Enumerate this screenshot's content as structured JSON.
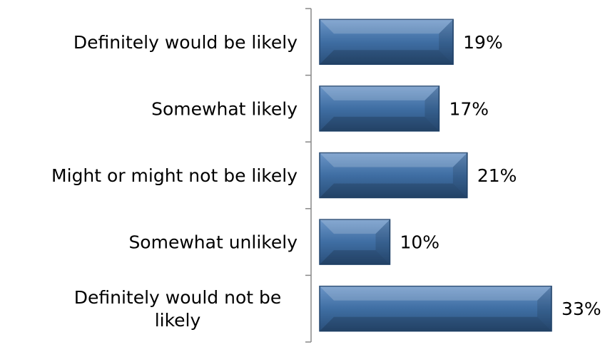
{
  "chart_data": {
    "type": "bar",
    "orientation": "horizontal",
    "categories": [
      "Definitely would be likely",
      "Somewhat likely",
      "Might or might not be likely",
      "Somewhat unlikely",
      "Definitely would not be likely"
    ],
    "category_lines": [
      [
        "Definitely would be likely"
      ],
      [
        "Somewhat likely"
      ],
      [
        "Might or might not be likely"
      ],
      [
        "Somewhat unlikely"
      ],
      [
        "Definitely would not be",
        "likely"
      ]
    ],
    "values": [
      19,
      17,
      21,
      10,
      33
    ],
    "data_labels": [
      "19%",
      "17%",
      "21%",
      "10%",
      "33%"
    ],
    "unit": "%",
    "title": "",
    "xlabel": "",
    "ylabel": "",
    "xlim": [
      0,
      35
    ],
    "grid": false,
    "legend": "none",
    "colors": {
      "bar_fill": "#3f6ea3",
      "bar_top": "#6b95c7",
      "bar_bottom": "#2a4f7a",
      "bar_edge": "#23466f",
      "axis": "#888888",
      "text": "#000000"
    }
  }
}
